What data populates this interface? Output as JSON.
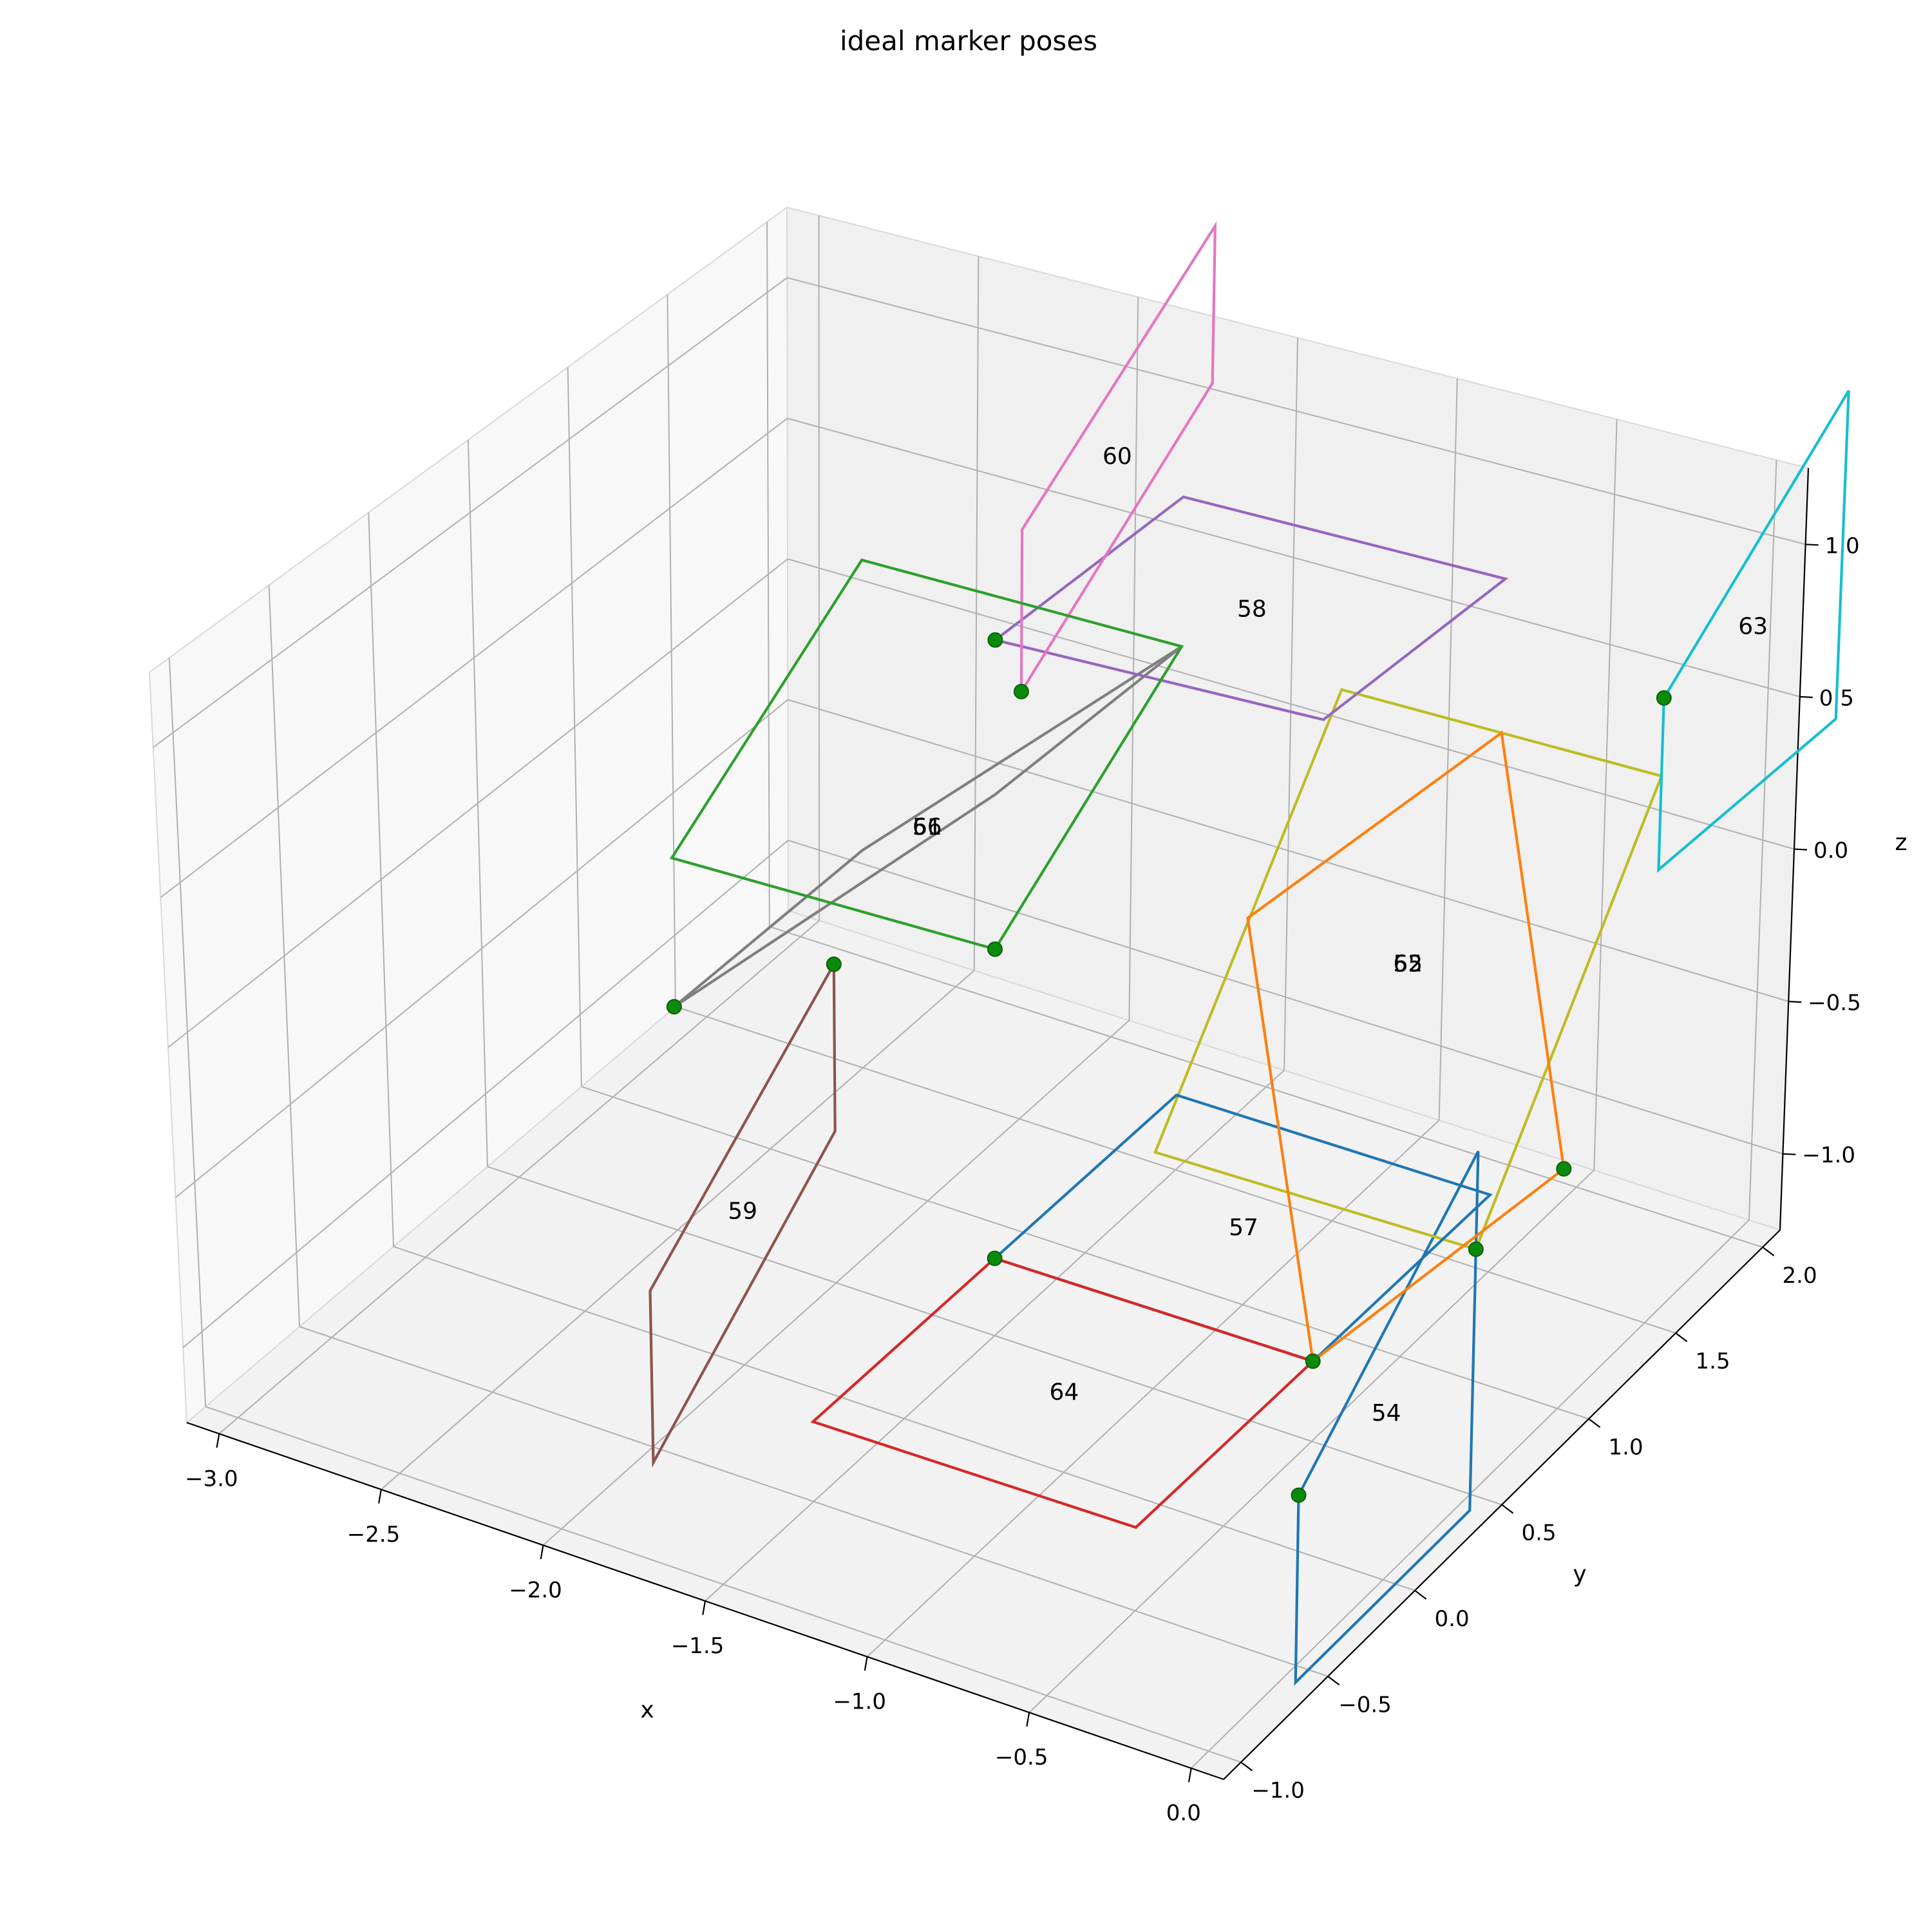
{
  "chart_data": {
    "type": "line3d",
    "title": "ideal marker poses",
    "xlabel": "x",
    "ylabel": "y",
    "zlabel": "z",
    "xlim": [
      -3.1,
      0.1
    ],
    "ylim": [
      -1.1,
      2.1
    ],
    "zlim": [
      -1.25,
      1.25
    ],
    "x_ticks": [
      -3.0,
      -2.5,
      -2.0,
      -1.5,
      -1.0,
      -0.5,
      0.0
    ],
    "y_ticks": [
      -1.0,
      -0.5,
      0.0,
      0.5,
      1.0,
      1.5,
      2.0
    ],
    "z_ticks": [
      -1.0,
      -0.5,
      0.0,
      0.5,
      1.0
    ],
    "x_tick_labels": [
      "−3.0",
      "−2.5",
      "−2.0",
      "−1.5",
      "−1.0",
      "−0.5",
      "0.0"
    ],
    "y_tick_labels": [
      "−1.0",
      "−0.5",
      "0.0",
      "0.5",
      "1.0",
      "1.5",
      "2.0"
    ],
    "z_tick_labels": [
      "−1.0",
      "−0.5",
      "0.0",
      "0.5",
      "1.0"
    ],
    "grid": true,
    "corner_marker_color": "#008000",
    "markers": [
      {
        "id": "54",
        "color": "#1f77b4",
        "label_at": [
          0.0,
          0.0,
          -0.75
        ],
        "corners": [
          [
            0.0,
            -0.5,
            -0.75
          ],
          [
            0.0,
            0.5,
            -0.2
          ],
          [
            0.0,
            0.5,
            -1.3
          ],
          [
            0.0,
            -0.5,
            -1.3
          ]
        ]
      },
      {
        "id": "55",
        "color": "#bcbd22",
        "label_at": [
          -0.5,
          1.0,
          0.0
        ],
        "corners": [
          [
            0.0,
            0.5,
            -0.5
          ],
          [
            -1.0,
            0.5,
            -0.5
          ],
          [
            -1.0,
            1.5,
            0.5
          ],
          [
            0.0,
            1.5,
            0.5
          ]
        ]
      },
      {
        "id": "56",
        "color": "#7f7f7f",
        "label_at": [
          -2.0,
          1.0,
          0.0
        ],
        "corners": [
          [
            -2.5,
            0.5,
            -0.5
          ],
          [
            -1.5,
            0.5,
            0.5
          ],
          [
            -1.5,
            1.5,
            0.5
          ],
          [
            -2.5,
            1.5,
            -0.5
          ]
        ]
      },
      {
        "id": "57",
        "color": "#1f77b4",
        "label_at": [
          -1.0,
          1.0,
          -1.0
        ],
        "corners": [
          [
            -0.5,
            0.5,
            -1.0
          ],
          [
            -1.5,
            0.5,
            -1.0
          ],
          [
            -1.5,
            1.5,
            -1.0
          ],
          [
            -0.5,
            1.5,
            -1.0
          ]
        ]
      },
      {
        "id": "58",
        "color": "#9467bd",
        "label_at": [
          -1.0,
          1.0,
          1.0
        ],
        "corners": [
          [
            -1.5,
            0.5,
            1.0
          ],
          [
            -0.5,
            0.5,
            1.0
          ],
          [
            -0.5,
            1.5,
            1.0
          ],
          [
            -1.5,
            1.5,
            1.0
          ]
        ]
      },
      {
        "id": "59",
        "color": "#8c564b",
        "label_at": [
          -2.0,
          0.0,
          -0.75
        ],
        "corners": [
          [
            -2.0,
            0.5,
            -0.2
          ],
          [
            -2.0,
            -0.5,
            -0.75
          ],
          [
            -2.0,
            -0.5,
            -1.3
          ],
          [
            -2.0,
            0.5,
            -0.75
          ]
        ]
      },
      {
        "id": "60",
        "color": "#e377c2",
        "label_at": [
          -2.0,
          2.0,
          0.75
        ],
        "corners": [
          [
            -2.0,
            1.5,
            0.2
          ],
          [
            -2.0,
            2.5,
            0.75
          ],
          [
            -2.0,
            2.5,
            1.3
          ],
          [
            -2.0,
            1.5,
            0.75
          ]
        ]
      },
      {
        "id": "61",
        "color": "#2ca02c",
        "label_at": [
          -2.0,
          1.0,
          0.0
        ],
        "corners": [
          [
            -1.5,
            0.5,
            0.0
          ],
          [
            -1.5,
            1.5,
            0.5
          ],
          [
            -2.5,
            1.5,
            0.5
          ],
          [
            -2.5,
            0.5,
            0.0
          ]
        ]
      },
      {
        "id": "62",
        "color": "#ff7f0e",
        "label_at": [
          -0.5,
          1.0,
          0.0
        ],
        "corners": [
          [
            0.0,
            1.0,
            -0.5
          ],
          [
            -0.5,
            1.5,
            0.5
          ],
          [
            -1.0,
            1.0,
            0.0
          ],
          [
            -0.5,
            0.5,
            -1.0
          ]
        ]
      },
      {
        "id": "63",
        "color": "#17becf",
        "label_at": [
          0.0,
          2.0,
          0.75
        ],
        "corners": [
          [
            0.0,
            1.5,
            0.75
          ],
          [
            0.0,
            2.5,
            1.3
          ],
          [
            0.0,
            2.5,
            0.2
          ],
          [
            0.0,
            1.5,
            0.2
          ]
        ]
      },
      {
        "id": "64",
        "color": "#d62728",
        "label_at": [
          -1.0,
          0.0,
          -1.0
        ],
        "corners": [
          [
            -1.5,
            0.5,
            -1.0
          ],
          [
            -0.5,
            0.5,
            -1.0
          ],
          [
            -0.5,
            -0.5,
            -1.0
          ],
          [
            -1.5,
            -0.5,
            -1.0
          ]
        ]
      }
    ]
  }
}
